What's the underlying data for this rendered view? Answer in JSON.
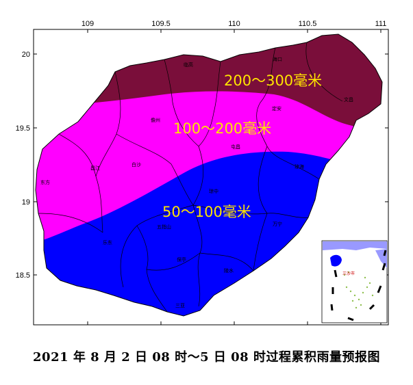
{
  "map": {
    "lon_ticks": [
      "109",
      "109.5",
      "110",
      "110.5",
      "111"
    ],
    "lat_ticks": [
      "20",
      "19.5",
      "19",
      "18.5"
    ],
    "bands": [
      {
        "label": "200～300毫米",
        "color": "#7a0e3a"
      },
      {
        "label": "100～200毫米",
        "color": "#ff00ff"
      },
      {
        "label": "50～100毫米",
        "color": "#0000ff"
      }
    ],
    "cities": [
      "海口",
      "临高",
      "儋州",
      "定安",
      "文昌",
      "屯昌",
      "琼海",
      "昌江",
      "白沙",
      "东方",
      "琼中",
      "万宁",
      "乐东",
      "五指山",
      "保亭",
      "陵水",
      "三亚"
    ],
    "inset": {
      "label": "三沙市"
    }
  },
  "caption": "2021 年 8 月 2 日 08 时～5 日 08 时过程累积雨量预报图"
}
